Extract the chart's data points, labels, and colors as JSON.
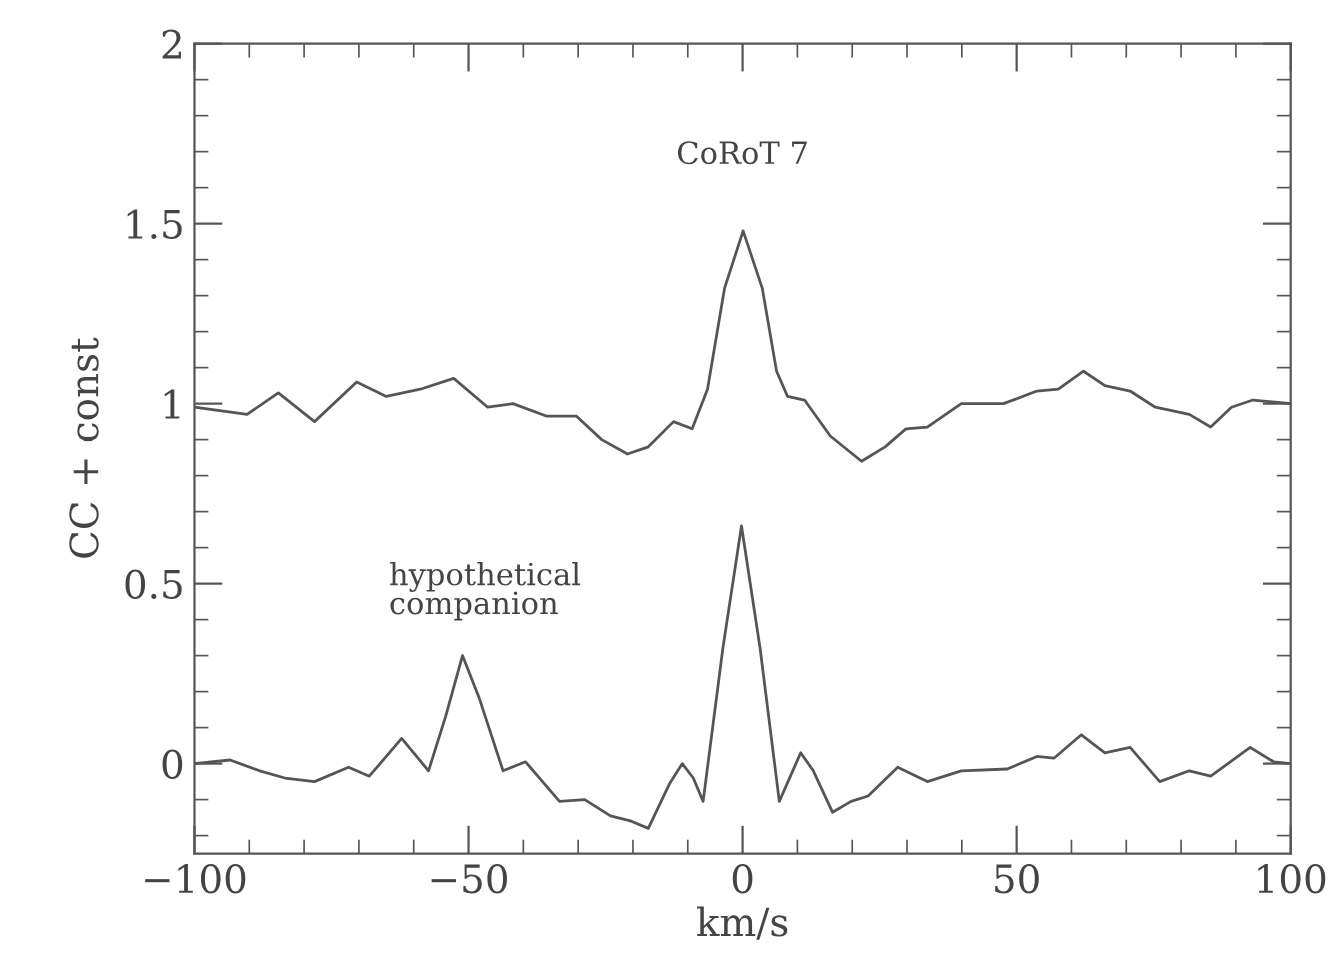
{
  "chart_data": {
    "type": "line",
    "xlabel": "km/s",
    "ylabel": "CC + const",
    "xlim": [
      -100,
      100
    ],
    "ylim": [
      -0.25,
      2
    ],
    "xticks": [
      {
        "value": -100,
        "label": "−100"
      },
      {
        "value": -50,
        "label": "−50"
      },
      0,
      50,
      100
    ],
    "yticks": [
      0,
      0.5,
      1,
      1.5,
      2
    ],
    "grid": false,
    "legend": false,
    "marker": "none",
    "line_style": "solid",
    "annotations": [
      "CoRoT 7",
      "hypothetical\ncompanion"
    ],
    "series": [
      {
        "color": "#555555",
        "x": [
          -100,
          -90.4,
          -84.7,
          -78.1,
          -70.4,
          -65,
          -58.8,
          -52.7,
          -46.5,
          -41.9,
          -35.7,
          -30.3,
          -25.7,
          -21,
          -17.2,
          -12.6,
          -9.2,
          -6.4,
          -3.3,
          0.1,
          3.6,
          6.2,
          8.2,
          11.3,
          16,
          21.7,
          26,
          29.8,
          33.7,
          39.9,
          47.6,
          53.7,
          57.6,
          62.2,
          66.1,
          70.7,
          75.3,
          81.5,
          85.4,
          89.2,
          93.1,
          100
        ],
        "values": [
          0.99,
          0.97,
          1.03,
          0.95,
          1.06,
          1.02,
          1.04,
          1.07,
          0.99,
          1.0,
          0.965,
          0.965,
          0.9,
          0.86,
          0.88,
          0.95,
          0.93,
          1.04,
          1.32,
          1.48,
          1.32,
          1.09,
          1.02,
          1.01,
          0.91,
          0.84,
          0.88,
          0.93,
          0.935,
          1.0,
          1.0,
          1.035,
          1.04,
          1.09,
          1.05,
          1.035,
          0.99,
          0.97,
          0.935,
          0.99,
          1.01,
          1.0
        ]
      },
      {
        "color": "#555555",
        "x": [
          -100,
          -93.5,
          -88.1,
          -83.5,
          -78.1,
          -71.9,
          -68.1,
          -62.2,
          -57.3,
          -54.2,
          -51.1,
          -48,
          -43.7,
          -39.6,
          -33.4,
          -28.8,
          -24.1,
          -20.3,
          -17.2,
          -13.3,
          -11,
          -9,
          -7.2,
          -3.6,
          -0.2,
          3.2,
          6.7,
          10.6,
          12.9,
          16.4,
          19.8,
          22.9,
          28.3,
          33.7,
          39.9,
          48.3,
          53.7,
          56.8,
          61.8,
          66.1,
          70.7,
          76.1,
          81.5,
          85.4,
          92.6,
          96.9,
          100
        ],
        "values": [
          0.0,
          0.01,
          -0.02,
          -0.04,
          -0.05,
          -0.01,
          -0.035,
          0.07,
          -0.02,
          0.13,
          0.3,
          0.18,
          -0.02,
          0.005,
          -0.105,
          -0.1,
          -0.145,
          -0.16,
          -0.18,
          -0.055,
          0.0,
          -0.04,
          -0.105,
          0.32,
          0.66,
          0.32,
          -0.105,
          0.03,
          -0.02,
          -0.135,
          -0.105,
          -0.09,
          -0.01,
          -0.05,
          -0.02,
          -0.015,
          0.02,
          0.015,
          0.08,
          0.03,
          0.045,
          -0.05,
          -0.02,
          -0.035,
          0.045,
          0.005,
          0.0
        ]
      }
    ]
  }
}
